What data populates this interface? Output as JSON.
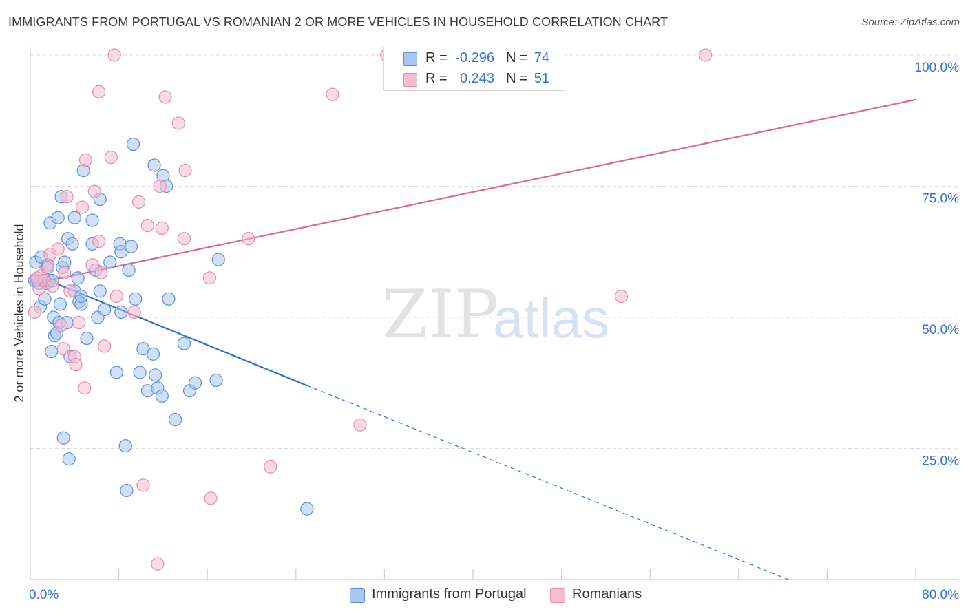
{
  "title": "IMMIGRANTS FROM PORTUGAL VS ROMANIAN 2 OR MORE VEHICLES IN HOUSEHOLD CORRELATION CHART",
  "source": "Source: ZipAtlas.com",
  "watermark": {
    "zip": "ZIP",
    "atlas": "atlas"
  },
  "colors": {
    "blue_fill": "#a9c6ef",
    "blue_stroke": "#5b8ed6",
    "blue_line": "#2d6fd2",
    "pink_fill": "#f6bcd0",
    "pink_stroke": "#e58aa8",
    "pink_line": "#e0668f",
    "axis_text": "#3a6fd8",
    "grid": "#dcdcdc"
  },
  "stats": [
    {
      "r_label": "R =",
      "r_value": "-0.296",
      "n_label": "N =",
      "n_value": "74",
      "color": "blue"
    },
    {
      "r_label": "R =",
      "r_value": "0.243",
      "n_label": "N =",
      "n_value": "51",
      "color": "pink"
    }
  ],
  "legend": [
    "Immigrants from Portugal",
    "Romanians"
  ],
  "chart_data": {
    "type": "scatter",
    "title": "IMMIGRANTS FROM PORTUGAL VS ROMANIAN 2 OR MORE VEHICLES IN HOUSEHOLD CORRELATION CHART",
    "xlabel": "",
    "ylabel": "2 or more Vehicles in Household",
    "xlim": [
      0,
      80
    ],
    "ylim": [
      0,
      105
    ],
    "x_tick_labels": [
      "0.0%",
      "80.0%"
    ],
    "y_ticks": [
      25,
      50,
      75,
      100
    ],
    "y_tick_labels": [
      "25.0%",
      "50.0%",
      "75.0%",
      "100.0%"
    ],
    "grid": true,
    "legend_position": "bottom",
    "series": [
      {
        "name": "Immigrants from Portugal",
        "color": "blue",
        "trend": {
          "x": [
            0.5,
            25
          ],
          "y": [
            58,
            37
          ],
          "dashed_to": {
            "x": [
              25,
              68.5
            ],
            "y": [
              37,
              0
            ]
          }
        },
        "points": [
          [
            0.5,
            60.5
          ],
          [
            0.6,
            57
          ],
          [
            0.8,
            56.5
          ],
          [
            0.9,
            52
          ],
          [
            1.0,
            61.5
          ],
          [
            1.2,
            57
          ],
          [
            1.3,
            53.5
          ],
          [
            1.5,
            56.5
          ],
          [
            1.5,
            59.5
          ],
          [
            1.6,
            60
          ],
          [
            1.7,
            57
          ],
          [
            1.8,
            68
          ],
          [
            1.9,
            43.5
          ],
          [
            2.0,
            57
          ],
          [
            2.1,
            50
          ],
          [
            2.2,
            46.5
          ],
          [
            2.5,
            69
          ],
          [
            2.6,
            49
          ],
          [
            2.7,
            52.5
          ],
          [
            2.8,
            73
          ],
          [
            2.9,
            59.5
          ],
          [
            3.0,
            27
          ],
          [
            3.1,
            60.5
          ],
          [
            3.3,
            49
          ],
          [
            3.4,
            65
          ],
          [
            3.5,
            23
          ],
          [
            3.6,
            42.5
          ],
          [
            3.8,
            64
          ],
          [
            4.0,
            69
          ],
          [
            4.0,
            55
          ],
          [
            4.3,
            57.5
          ],
          [
            4.4,
            53
          ],
          [
            4.6,
            52.5
          ],
          [
            4.6,
            54
          ],
          [
            4.8,
            78
          ],
          [
            5.1,
            46
          ],
          [
            5.6,
            64
          ],
          [
            5.6,
            68.5
          ],
          [
            5.9,
            59
          ],
          [
            6.1,
            50
          ],
          [
            6.3,
            72.5
          ],
          [
            6.3,
            55
          ],
          [
            6.7,
            51.5
          ],
          [
            7.2,
            60.5
          ],
          [
            7.8,
            39.5
          ],
          [
            8.1,
            64
          ],
          [
            8.2,
            62.5
          ],
          [
            8.2,
            51
          ],
          [
            8.6,
            25.5
          ],
          [
            8.7,
            17
          ],
          [
            8.9,
            59
          ],
          [
            9.1,
            63.5
          ],
          [
            9.3,
            83
          ],
          [
            9.5,
            53.5
          ],
          [
            9.9,
            39.5
          ],
          [
            10.2,
            44
          ],
          [
            10.6,
            36
          ],
          [
            11.1,
            43
          ],
          [
            11.3,
            39
          ],
          [
            11.2,
            79
          ],
          [
            11.5,
            36.5
          ],
          [
            11.9,
            35
          ],
          [
            12.0,
            77
          ],
          [
            12.3,
            75
          ],
          [
            12.5,
            53.5
          ],
          [
            13.1,
            30.5
          ],
          [
            13.9,
            45
          ],
          [
            14.4,
            36
          ],
          [
            14.9,
            37.5
          ],
          [
            16.8,
            38
          ],
          [
            17.0,
            61
          ],
          [
            25.0,
            13.5
          ],
          [
            0.4,
            57
          ],
          [
            2.4,
            47
          ]
        ]
      },
      {
        "name": "Romanians",
        "color": "pink",
        "trend": {
          "x": [
            0.5,
            80
          ],
          "y": [
            56.5,
            91.5
          ]
        },
        "points": [
          [
            0.4,
            51
          ],
          [
            0.8,
            55.5
          ],
          [
            1.0,
            58
          ],
          [
            1.3,
            57
          ],
          [
            1.6,
            59.5
          ],
          [
            1.8,
            62
          ],
          [
            2.0,
            56
          ],
          [
            2.5,
            63
          ],
          [
            2.8,
            48.5
          ],
          [
            3.0,
            44
          ],
          [
            3.1,
            58.5
          ],
          [
            3.3,
            73
          ],
          [
            3.6,
            55
          ],
          [
            4.0,
            42.5
          ],
          [
            4.1,
            41
          ],
          [
            4.4,
            49
          ],
          [
            4.7,
            71
          ],
          [
            4.9,
            36.5
          ],
          [
            5.0,
            80
          ],
          [
            5.6,
            60
          ],
          [
            5.8,
            74
          ],
          [
            6.2,
            93
          ],
          [
            6.2,
            64.5
          ],
          [
            6.4,
            58.5
          ],
          [
            6.7,
            44.5
          ],
          [
            7.3,
            80.5
          ],
          [
            7.6,
            100
          ],
          [
            7.8,
            54
          ],
          [
            9.4,
            51
          ],
          [
            9.8,
            72
          ],
          [
            10.2,
            18
          ],
          [
            10.6,
            67.5
          ],
          [
            11.5,
            3
          ],
          [
            11.7,
            75
          ],
          [
            11.9,
            67
          ],
          [
            12.2,
            92
          ],
          [
            13.4,
            87
          ],
          [
            13.9,
            65
          ],
          [
            14.0,
            78
          ],
          [
            16.2,
            57.5
          ],
          [
            16.3,
            15.5
          ],
          [
            19.7,
            65
          ],
          [
            21.7,
            21.5
          ],
          [
            27.3,
            92.5
          ],
          [
            29.8,
            29.5
          ],
          [
            32.2,
            100
          ],
          [
            32.5,
            100
          ],
          [
            36.3,
            100
          ],
          [
            53.4,
            54
          ],
          [
            61.0,
            100
          ],
          [
            0.6,
            57.5
          ]
        ]
      }
    ]
  }
}
